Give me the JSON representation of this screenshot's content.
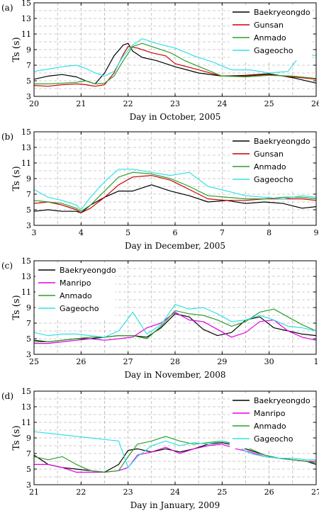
{
  "chart_data": [
    {
      "type": "line",
      "panel_label": "(a)",
      "xlabel": "Day in October, 2005",
      "ylabel": "Ts (s)",
      "xlim": [
        20,
        26
      ],
      "ylim": [
        3,
        15
      ],
      "xticks": [
        "20",
        "21",
        "22",
        "23",
        "24",
        "25",
        "26"
      ],
      "yticks": [
        "3",
        "5",
        "7",
        "9",
        "11",
        "13",
        "15"
      ],
      "grid": true,
      "legend": "top-right",
      "series": [
        {
          "name": "Baekryeongdo",
          "color": "#000000",
          "x": [
            20,
            20.3,
            20.6,
            20.9,
            21.1,
            21.3,
            21.5,
            21.7,
            21.9,
            22.0,
            22.1,
            22.3,
            22.6,
            23.0,
            23.5,
            24.0,
            24.5,
            25.0,
            25.5,
            26.0
          ],
          "y": [
            5.2,
            5.6,
            5.8,
            5.5,
            5.0,
            4.6,
            6.0,
            8.2,
            9.6,
            9.8,
            8.8,
            8.0,
            7.6,
            6.8,
            6.0,
            5.6,
            5.7,
            5.9,
            5.4,
            4.7
          ]
        },
        {
          "name": "Gunsan",
          "color": "#cc0000",
          "x": [
            20,
            20.3,
            20.6,
            20.9,
            21.1,
            21.3,
            21.5,
            21.7,
            21.9,
            22.0,
            22.2,
            22.5,
            22.8,
            23.0,
            23.5,
            24.0,
            24.5,
            25.0,
            25.5,
            26.0
          ],
          "y": [
            4.4,
            4.3,
            4.5,
            4.6,
            4.5,
            4.3,
            4.5,
            6.0,
            8.4,
            9.4,
            9.2,
            8.6,
            8.2,
            7.2,
            6.4,
            5.6,
            5.6,
            5.8,
            5.5,
            5.2
          ]
        },
        {
          "name": "Anmado",
          "color": "#2ca02c",
          "x": [
            20,
            20.3,
            20.6,
            20.9,
            21.1,
            21.3,
            21.5,
            21.7,
            21.9,
            22.1,
            22.3,
            22.6,
            22.9,
            23.2,
            23.6,
            24.0,
            24.5,
            25.0,
            25.5,
            26.0
          ],
          "y": [
            4.6,
            4.6,
            4.7,
            4.8,
            5.0,
            4.6,
            4.7,
            5.6,
            7.6,
            9.4,
            9.8,
            9.2,
            8.6,
            7.6,
            6.6,
            5.6,
            5.5,
            5.7,
            5.6,
            5.3
          ]
        },
        {
          "name": "Gageocho",
          "color": "#33e0e6",
          "x": [
            20,
            20.3,
            20.6,
            20.9,
            21.1,
            21.3,
            21.5,
            21.7,
            21.9,
            22.1,
            22.3,
            22.6,
            23.0,
            23.4,
            23.8,
            24.2,
            24.6,
            25.0,
            25.4,
            25.7,
            26.0
          ],
          "y": [
            6.2,
            6.5,
            6.8,
            7.0,
            6.6,
            6.0,
            5.6,
            6.2,
            8.2,
            9.6,
            10.4,
            9.8,
            9.2,
            8.2,
            7.4,
            6.4,
            6.4,
            6.0,
            6.2,
            8.6,
            8.2
          ]
        }
      ]
    },
    {
      "type": "line",
      "panel_label": "(b)",
      "xlabel": "Day in December, 2005",
      "ylabel": "Ts (s)",
      "xlim": [
        3,
        9
      ],
      "ylim": [
        3,
        15
      ],
      "xticks": [
        "3",
        "4",
        "5",
        "6",
        "7",
        "8",
        "9"
      ],
      "yticks": [
        "3",
        "5",
        "7",
        "9",
        "11",
        "13",
        "15"
      ],
      "grid": true,
      "legend": "top-right",
      "series": [
        {
          "name": "Baekryeongdo",
          "color": "#000000",
          "x": [
            3,
            3.3,
            3.6,
            3.9,
            4.0,
            4.2,
            4.5,
            4.8,
            5.1,
            5.5,
            5.9,
            6.3,
            6.7,
            7.1,
            7.5,
            7.9,
            8.3,
            8.7,
            9.0
          ],
          "y": [
            4.8,
            5.0,
            4.8,
            4.8,
            4.6,
            5.6,
            6.6,
            7.4,
            7.4,
            8.2,
            7.4,
            6.8,
            6.0,
            6.2,
            5.8,
            6.0,
            5.8,
            5.2,
            5.4
          ]
        },
        {
          "name": "Gunsan",
          "color": "#cc0000",
          "x": [
            3,
            3.3,
            3.6,
            3.9,
            4.0,
            4.2,
            4.5,
            4.8,
            5.1,
            5.5,
            5.9,
            6.3,
            6.7,
            7.1,
            7.5,
            7.9,
            8.3,
            8.7,
            9.0
          ],
          "y": [
            5.8,
            6.0,
            5.6,
            5.0,
            4.6,
            5.2,
            6.6,
            8.2,
            9.2,
            9.4,
            8.8,
            7.6,
            6.4,
            6.2,
            6.2,
            6.4,
            6.4,
            6.4,
            6.2
          ]
        },
        {
          "name": "Anmado",
          "color": "#2ca02c",
          "x": [
            3,
            3.3,
            3.6,
            3.9,
            4.0,
            4.2,
            4.5,
            4.8,
            5.1,
            5.5,
            5.9,
            6.3,
            6.7,
            7.1,
            7.5,
            7.9,
            8.3,
            8.7,
            9.0
          ],
          "y": [
            6.2,
            6.0,
            5.8,
            5.2,
            4.8,
            5.6,
            7.4,
            9.2,
            9.8,
            9.6,
            9.0,
            8.0,
            6.8,
            6.6,
            6.4,
            6.4,
            6.6,
            6.6,
            6.4
          ]
        },
        {
          "name": "Gageocho",
          "color": "#33e0e6",
          "x": [
            3,
            3.3,
            3.6,
            3.9,
            4.0,
            4.2,
            4.5,
            4.8,
            5.1,
            5.5,
            5.9,
            6.3,
            6.7,
            7.1,
            7.5,
            7.9,
            8.3,
            8.7,
            9.0
          ],
          "y": [
            7.6,
            6.6,
            6.2,
            5.6,
            5.0,
            6.6,
            8.6,
            10.2,
            10.2,
            9.8,
            9.4,
            9.8,
            8.0,
            7.4,
            6.8,
            6.6,
            6.4,
            6.8,
            6.6
          ]
        }
      ]
    },
    {
      "type": "line",
      "panel_label": "(c)",
      "xlabel": "Day in November, 2008",
      "ylabel": "Ts (s)",
      "xlim": [
        25,
        31
      ],
      "ylim": [
        3,
        15
      ],
      "xticks": [
        "25",
        "26",
        "27",
        "28",
        "29",
        "30",
        "1"
      ],
      "yticks": [
        "3",
        "5",
        "7",
        "9",
        "11",
        "13",
        "15"
      ],
      "grid": true,
      "legend": "top-left",
      "series": [
        {
          "name": "Baekryeongdo",
          "color": "#000000",
          "x": [
            25,
            25.3,
            25.6,
            25.9,
            26.2,
            26.5,
            26.8,
            27.1,
            27.4,
            27.7,
            28.0,
            28.3,
            28.6,
            28.9,
            29.2,
            29.5,
            29.8,
            30.1,
            30.4,
            30.7,
            31.0
          ],
          "y": [
            4.8,
            4.6,
            4.8,
            5.0,
            5.0,
            5.2,
            5.4,
            5.4,
            5.2,
            6.4,
            8.2,
            7.8,
            6.2,
            5.4,
            5.8,
            7.4,
            7.8,
            6.4,
            6.0,
            5.6,
            5.4
          ]
        },
        {
          "name": "Manripo",
          "color": "#e000e0",
          "x": [
            25,
            25.3,
            25.6,
            25.9,
            26.2,
            26.5,
            26.8,
            27.1,
            27.4,
            27.7,
            28.0,
            28.3,
            28.6,
            28.9,
            29.2,
            29.5,
            29.8,
            30.1,
            30.4,
            30.7,
            31.0
          ],
          "y": [
            4.4,
            4.4,
            4.6,
            4.8,
            5.0,
            4.8,
            5.0,
            5.2,
            6.4,
            7.0,
            8.4,
            7.4,
            7.2,
            6.2,
            5.2,
            5.8,
            7.2,
            7.4,
            6.0,
            5.2,
            4.8
          ]
        },
        {
          "name": "Anmado",
          "color": "#2ca02c",
          "x": [
            25,
            25.3,
            25.6,
            25.9,
            26.2,
            26.5,
            26.8,
            27.1,
            27.4,
            27.7,
            28.0,
            28.3,
            28.6,
            28.9,
            29.2,
            29.5,
            29.8,
            30.1,
            30.4,
            30.7,
            31.0
          ],
          "y": [
            4.6,
            4.6,
            4.8,
            5.0,
            5.2,
            5.2,
            5.4,
            5.4,
            5.0,
            6.6,
            8.6,
            8.2,
            8.0,
            7.4,
            6.6,
            7.2,
            8.4,
            8.8,
            7.8,
            6.8,
            6.0
          ]
        },
        {
          "name": "Gageocho",
          "color": "#33e0e6",
          "x": [
            25,
            25.3,
            25.6,
            25.9,
            26.2,
            26.5,
            26.8,
            27.1,
            27.4,
            27.7,
            28.0,
            28.3,
            28.6,
            28.9,
            29.2,
            29.5,
            29.8,
            30.1,
            30.4,
            30.7,
            31.0
          ],
          "y": [
            5.8,
            5.4,
            5.6,
            5.6,
            5.4,
            5.2,
            6.0,
            8.4,
            5.6,
            6.8,
            9.4,
            8.8,
            9.0,
            8.2,
            7.2,
            7.4,
            8.0,
            7.4,
            6.6,
            6.4,
            6.0
          ]
        }
      ]
    },
    {
      "type": "line",
      "panel_label": "(d)",
      "xlabel": "Day in January, 2009",
      "ylabel": "Ts (s)",
      "xlim": [
        21,
        27
      ],
      "ylim": [
        3,
        15
      ],
      "xticks": [
        "21",
        "22",
        "23",
        "24",
        "25",
        "26",
        "27"
      ],
      "yticks": [
        "3",
        "5",
        "7",
        "9",
        "11",
        "13",
        "15"
      ],
      "grid": true,
      "legend": "top-right",
      "series": [
        {
          "name": "Baekryeongdo",
          "color": "#000000",
          "x": [
            21,
            21.3,
            21.6,
            21.9,
            22.2,
            22.5,
            22.8,
            23.0,
            23.2,
            23.5,
            23.8,
            24.1,
            24.4,
            24.7,
            25.0,
            25.3,
            25.6,
            25.9,
            26.2,
            26.5,
            26.8,
            27.0
          ],
          "y": [
            6.8,
            5.6,
            5.2,
            5.0,
            4.8,
            4.6,
            5.6,
            7.4,
            7.6,
            7.2,
            7.6,
            7.2,
            7.6,
            8.2,
            8.4,
            8.0,
            7.4,
            6.8,
            6.4,
            6.2,
            6.0,
            5.6
          ]
        },
        {
          "name": "Manripo",
          "color": "#e000e0",
          "x": [
            21,
            21.3,
            21.6,
            21.9,
            22.2,
            22.5,
            22.8,
            23.0,
            23.2,
            23.5,
            23.8,
            24.1,
            24.4,
            24.7,
            25.0,
            25.3,
            25.6,
            25.9,
            26.2,
            26.5,
            26.8,
            27.0
          ],
          "y": [
            5.6,
            5.6,
            5.2,
            4.6,
            4.6,
            4.6,
            4.8,
            5.2,
            6.8,
            7.2,
            7.8,
            7.0,
            7.6,
            8.0,
            8.2,
            7.6,
            7.2,
            6.6,
            6.4,
            6.2,
            6.0,
            6.0
          ]
        },
        {
          "name": "Anmado",
          "color": "#2ca02c",
          "x": [
            21,
            21.3,
            21.6,
            21.9,
            22.2,
            22.5,
            22.8,
            23.0,
            23.2,
            23.5,
            23.8,
            24.1,
            24.4,
            24.7,
            25.0,
            25.3,
            25.6,
            25.9,
            26.2,
            26.5,
            26.8,
            27.0
          ],
          "y": [
            6.6,
            6.2,
            6.6,
            5.6,
            4.8,
            4.6,
            4.8,
            6.6,
            8.2,
            8.6,
            9.2,
            8.6,
            8.2,
            8.4,
            8.6,
            8.2,
            7.6,
            6.8,
            6.4,
            6.2,
            6.0,
            5.8
          ]
        },
        {
          "name": "Gageocho",
          "color": "#33e0e6",
          "x": [
            21,
            21.3,
            21.6,
            21.9,
            22.2,
            22.5,
            22.8,
            23.0,
            23.2,
            23.5,
            23.8,
            24.1,
            24.4,
            24.7,
            25.0,
            25.3,
            25.6,
            25.9,
            26.2,
            26.5,
            26.8,
            27.0
          ],
          "y": [
            9.8,
            9.6,
            9.4,
            9.2,
            9.0,
            8.8,
            8.6,
            5.2,
            6.6,
            8.0,
            8.6,
            8.0,
            8.4,
            8.2,
            8.6,
            8.0,
            7.0,
            6.6,
            6.4,
            6.4,
            6.2,
            6.2
          ]
        }
      ]
    }
  ]
}
